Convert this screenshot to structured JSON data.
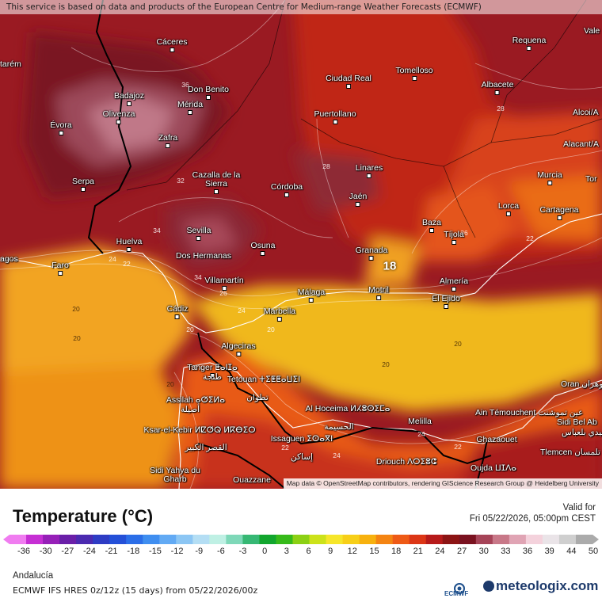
{
  "notice": "This service is based on data and products of the European Centre for Medium-range Weather Forecasts (ECMWF)",
  "attribution": "Map data © OpenStreetMap contributors, rendering GIScience Research Group @ Heidelberg University",
  "cities": {
    "caceres": "Cáceres",
    "ciudad_real": "Ciudad Real",
    "tomelloso": "Tomelloso",
    "requena": "Requena",
    "valencia": "Vale",
    "santarem": "tarém",
    "badajoz": "Badajoz",
    "don_benito": "Don Benito",
    "merida": "Mérida",
    "albacete": "Albacete",
    "olivenza": "Olivenza",
    "evora": "Évora",
    "puertollano": "Puertollano",
    "alcoi": "Alcoi/A",
    "zafra": "Zafra",
    "alicante": "Alacant/A",
    "linares": "Linares",
    "murcia": "Murcia",
    "serpa": "Serpa",
    "cazalla": "Cazalla de la Sierra",
    "cordoba": "Córdoba",
    "jaen": "Jaén",
    "torrevieja": "Tor",
    "baza": "Baza",
    "lorca": "Lorca",
    "cartagena": "Cartagena",
    "sevilla": "Sevilla",
    "huelva": "Huelva",
    "tijola": "Tíjola",
    "lagos": "agos",
    "faro": "Faro",
    "osuna": "Osuna",
    "dos_hermanas": "Dos Hermanas",
    "granada": "Granada",
    "almeria": "Almería",
    "villamartin": "Villamartín",
    "malaga": "Málaga",
    "motril": "Motril",
    "el_ejido": "El Ejido",
    "cadiz": "Cádiz",
    "marbella": "Marbella",
    "algeciras": "Algeciras",
    "tanger": "Tanger ⵟⴰⵏⵊⴰ",
    "tanger_ar": "طنجة",
    "tetouan": "Tetouan ⵜⵉⵟⵟⴰⵡⵉⵏ",
    "tetouan_ar": "تطوان",
    "assilah": "Assilah ⴰⵚⵉⵍⴰ",
    "assilah_ar": "أصيلة",
    "oran": "Oran وهران",
    "al_hoceima": "Al Hoceima ⵍⵃⵓⵙⵉⵎⴰ",
    "al_hoceima_ar": "الحسيمة",
    "melilla": "Melilla",
    "ain_temouchent": "Ain Témouchent عين تموشنت",
    "sidi_bel_abbes": "Sidi Bel Ab",
    "sidi_bel_abbes_ar": "سيدي بلعباس",
    "ksar_el_kebir": "Ksar-el-Kebir ⵍⵇⵚⵕ ⵍⴽⴱⵉⵔ",
    "ksar_el_kebir_ar": "القصر الكبير",
    "ghazaouet": "Ghazaouet",
    "issaguen": "Issaguen ⵉⵙⴰⴳⵏ",
    "issaguen_ar": "إساكن",
    "tlemcen": "Tlemcen تلمسان",
    "driouch": "Driouch ⴷⵔⵉⵓⵛ",
    "oujda": "Oujda ⵡⵊⴷⴰ",
    "sidi_yahya": "Sidi Yahya du Gharb",
    "ouazzane": "Ouazzane"
  },
  "isolines": {
    "v20a": "20",
    "v20b": "20",
    "v20c": "20",
    "v20d": "20",
    "v20e": "20",
    "v20f": "20",
    "v20g": "20",
    "v22a": "22",
    "v22b": "22",
    "v22c": "22",
    "v22d": "22",
    "v24a": "24",
    "v24b": "24",
    "v24c": "24",
    "v24d": "24",
    "v26a": "26",
    "v26b": "26",
    "v28a": "28",
    "v28b": "28",
    "v32a": "32",
    "v34a": "34",
    "v34b": "34",
    "v36a": "36"
  },
  "highlight_value": "18",
  "legend": {
    "title": "Temperature (°C)",
    "valid_label": "Valid for",
    "valid_date": "Fri 05/22/2026, 05:00pm CEST",
    "ticks": [
      "-36",
      "-30",
      "-27",
      "-24",
      "-21",
      "-18",
      "-15",
      "-12",
      "-9",
      "-6",
      "-3",
      "0",
      "3",
      "6",
      "9",
      "12",
      "15",
      "18",
      "21",
      "24",
      "27",
      "30",
      "33",
      "36",
      "39",
      "44",
      "50"
    ],
    "colors": [
      "#f07cf0",
      "#c62fd4",
      "#9620b8",
      "#6a1fa8",
      "#4b2ab0",
      "#2e3cc4",
      "#2450d8",
      "#2b6ee8",
      "#3f8ef0",
      "#62aaf4",
      "#8cc6f4",
      "#b4def4",
      "#bff0e4",
      "#7ed8b8",
      "#36b874",
      "#12a62e",
      "#36ba1a",
      "#8cd014",
      "#cce21a",
      "#f6e62a",
      "#f7cf18",
      "#f7b10e",
      "#f48412",
      "#ee5a16",
      "#dc3616",
      "#b61a1a",
      "#8c1414",
      "#7a1220",
      "#a64458",
      "#c87888",
      "#e0a4b4",
      "#f4d2dc",
      "#eae4e8",
      "#cfcfcf",
      "#ababab"
    ],
    "region": "Andalucía",
    "model": "ECMWF IFS HRES 0z/12z (15 days) from 05/22/2026/00z"
  },
  "branding": {
    "ecmwf": "ECMWF",
    "meteologix": "meteologix.com"
  }
}
